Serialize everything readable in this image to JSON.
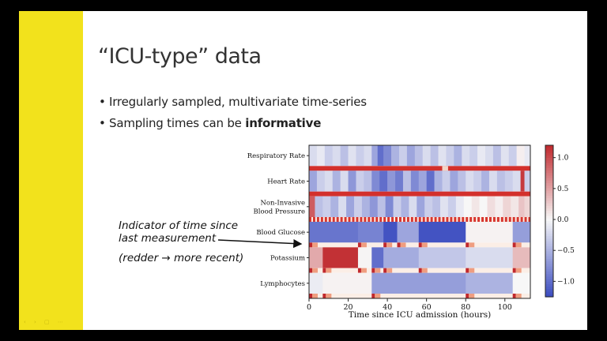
{
  "slide": {
    "title": "“ICU-type” data",
    "bullets": [
      {
        "text": "Irregularly sampled, multivariate time-series",
        "bold": ""
      },
      {
        "text": "Sampling times can be ",
        "bold": "informative"
      }
    ],
    "annotation": {
      "line1": "Indicator of time since",
      "line2": "last measurement",
      "note_prefix": "(redder ",
      "arrow_glyph": "→",
      "note_suffix": " more recent)"
    },
    "nav_glyphs": "‹ › ▢ ⋯"
  },
  "chart_data": {
    "type": "heatmap",
    "xlabel": "Time since ICU admission (hours)",
    "ylabel": "",
    "xlim": [
      0,
      113
    ],
    "xticks": [
      0,
      20,
      40,
      60,
      80,
      100
    ],
    "colorbar": {
      "range": [
        -1.25,
        1.2
      ],
      "ticks": [
        1.0,
        0.5,
        0.0,
        -0.5,
        -1.0
      ],
      "tick_labels": [
        "1.0",
        "0.5",
        "0.0",
        "−0.5",
        "−1.0"
      ],
      "low_color": "#3b4cc0",
      "mid_color": "#f7f7f7",
      "high_color": "#c0282d"
    },
    "rows": [
      {
        "label": "Respiratory Rate",
        "segments": [
          [
            0,
            -0.2
          ],
          [
            4,
            -0.1
          ],
          [
            8,
            -0.3
          ],
          [
            12,
            -0.2
          ],
          [
            16,
            -0.4
          ],
          [
            20,
            -0.15
          ],
          [
            24,
            -0.3
          ],
          [
            28,
            -0.2
          ],
          [
            32,
            -0.6
          ],
          [
            35,
            -1.0
          ],
          [
            38,
            -0.8
          ],
          [
            42,
            -0.5
          ],
          [
            46,
            -0.3
          ],
          [
            50,
            -0.6
          ],
          [
            54,
            -0.4
          ],
          [
            58,
            -0.2
          ],
          [
            62,
            -0.4
          ],
          [
            66,
            -0.15
          ],
          [
            70,
            -0.3
          ],
          [
            74,
            -0.5
          ],
          [
            78,
            -0.2
          ],
          [
            82,
            -0.3
          ],
          [
            86,
            -0.1
          ],
          [
            90,
            -0.2
          ],
          [
            94,
            -0.4
          ],
          [
            98,
            -0.15
          ],
          [
            102,
            -0.3
          ],
          [
            106,
            0.05
          ],
          [
            110,
            -0.1
          ]
        ],
        "indicator": "full"
      },
      {
        "label": "Heart Rate",
        "segments": [
          [
            0,
            -0.6
          ],
          [
            4,
            -0.3
          ],
          [
            8,
            -0.2
          ],
          [
            12,
            -0.5
          ],
          [
            16,
            -0.2
          ],
          [
            20,
            -0.7
          ],
          [
            24,
            -0.3
          ],
          [
            28,
            -0.4
          ],
          [
            32,
            -0.8
          ],
          [
            36,
            -1.0
          ],
          [
            40,
            -0.7
          ],
          [
            44,
            -0.9
          ],
          [
            48,
            -0.4
          ],
          [
            52,
            -0.8
          ],
          [
            56,
            -0.6
          ],
          [
            60,
            -1.0
          ],
          [
            64,
            -0.5
          ],
          [
            68,
            -0.3
          ],
          [
            72,
            -0.6
          ],
          [
            76,
            -0.4
          ],
          [
            80,
            -0.2
          ],
          [
            84,
            -0.3
          ],
          [
            88,
            -0.5
          ],
          [
            92,
            -0.2
          ],
          [
            96,
            -0.4
          ],
          [
            100,
            -0.3
          ],
          [
            104,
            -0.2
          ],
          [
            108,
            1.1
          ],
          [
            110,
            -0.3
          ]
        ],
        "indicator": "full"
      },
      {
        "label": "Non-Invasive\nBlood Pressure",
        "segments": [
          [
            0,
            0.9
          ],
          [
            3,
            -0.4
          ],
          [
            7,
            -0.3
          ],
          [
            11,
            -0.5
          ],
          [
            15,
            -0.2
          ],
          [
            19,
            -0.6
          ],
          [
            23,
            -0.3
          ],
          [
            27,
            -0.5
          ],
          [
            31,
            -0.7
          ],
          [
            35,
            -0.4
          ],
          [
            39,
            -0.8
          ],
          [
            43,
            -0.3
          ],
          [
            47,
            -0.5
          ],
          [
            51,
            -0.2
          ],
          [
            55,
            -0.6
          ],
          [
            59,
            -0.3
          ],
          [
            63,
            -0.4
          ],
          [
            67,
            -0.15
          ],
          [
            71,
            -0.3
          ],
          [
            75,
            -0.1
          ],
          [
            79,
            0.0
          ],
          [
            83,
            0.1
          ],
          [
            87,
            0.0
          ],
          [
            91,
            0.15
          ],
          [
            95,
            0.05
          ],
          [
            99,
            0.2
          ],
          [
            103,
            0.1
          ],
          [
            107,
            0.3
          ],
          [
            110,
            0.2
          ]
        ],
        "indicator": "dense"
      },
      {
        "label": "Blood Glucose",
        "segments": [
          [
            0,
            -0.95
          ],
          [
            25,
            -0.85
          ],
          [
            38,
            -1.2
          ],
          [
            45,
            -0.6
          ],
          [
            56,
            -1.2
          ],
          [
            80,
            0.03
          ],
          [
            104,
            -0.65
          ]
        ],
        "indicator": [
          [
            0
          ],
          [
            25
          ],
          [
            38
          ],
          [
            45
          ],
          [
            56
          ],
          [
            80
          ],
          [
            104
          ]
        ]
      },
      {
        "label": "Potassium",
        "segments": [
          [
            0,
            0.45
          ],
          [
            7,
            1.15
          ],
          [
            25,
            0.02
          ],
          [
            32,
            -1.0
          ],
          [
            38,
            -0.55
          ],
          [
            56,
            -0.35
          ],
          [
            80,
            -0.2
          ],
          [
            104,
            0.35
          ]
        ],
        "indicator": [
          [
            0
          ],
          [
            7
          ],
          [
            25
          ],
          [
            32
          ],
          [
            38
          ],
          [
            56
          ],
          [
            80
          ],
          [
            104
          ]
        ]
      },
      {
        "label": "Lymphocytes",
        "segments": [
          [
            0,
            -0.08
          ],
          [
            7,
            0.03
          ],
          [
            32,
            -0.65
          ],
          [
            80,
            -0.5
          ],
          [
            104,
            0.0
          ]
        ],
        "indicator": [
          [
            0
          ],
          [
            7
          ],
          [
            32
          ],
          [
            80
          ],
          [
            104
          ]
        ]
      }
    ]
  }
}
